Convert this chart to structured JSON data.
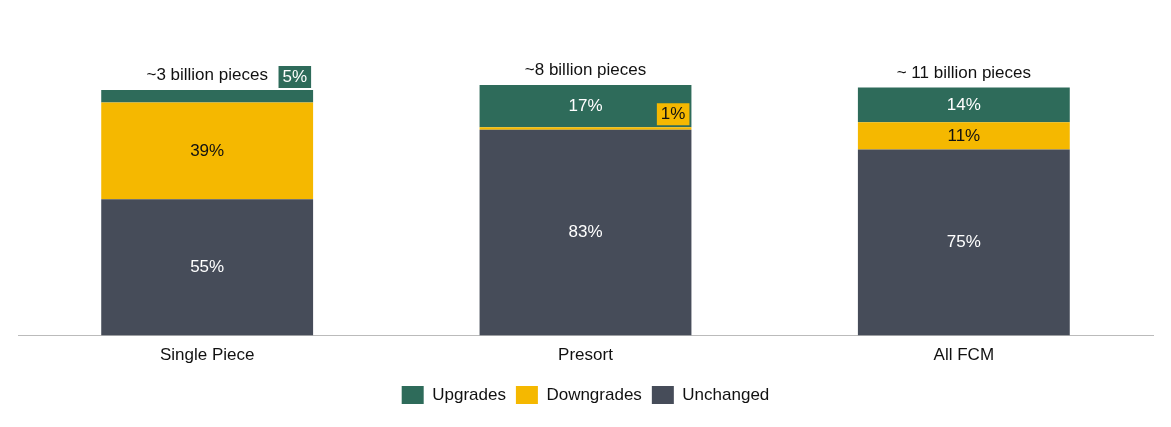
{
  "chart_data": {
    "type": "bar",
    "stacked": true,
    "legend": "bottom",
    "categories": [
      "Single Piece",
      "Presort",
      "All FCM"
    ],
    "annotations": [
      {
        "text": "~3 billion pieces",
        "x": "Single Piece",
        "y": 99
      },
      {
        "text": "~8 billion pieces",
        "x": "Presort",
        "y": 101
      },
      {
        "text": "~ 11 billion pieces",
        "x": "All FCM",
        "y": 100
      }
    ],
    "series": [
      {
        "name": "Unchanged",
        "color": "#464c59",
        "values": [
          55,
          83,
          75
        ],
        "value_labels": [
          "55%",
          "83%",
          "75%"
        ]
      },
      {
        "name": "Downgrades",
        "color": "#f5b800",
        "values": [
          39,
          1,
          11
        ],
        "value_labels": [
          "39%",
          "1%",
          "11%"
        ]
      },
      {
        "name": "Upgrades",
        "color": "#2e6b5a",
        "values": [
          5,
          17,
          14
        ],
        "value_labels": [
          "5%",
          "17%",
          "14%"
        ]
      }
    ]
  }
}
